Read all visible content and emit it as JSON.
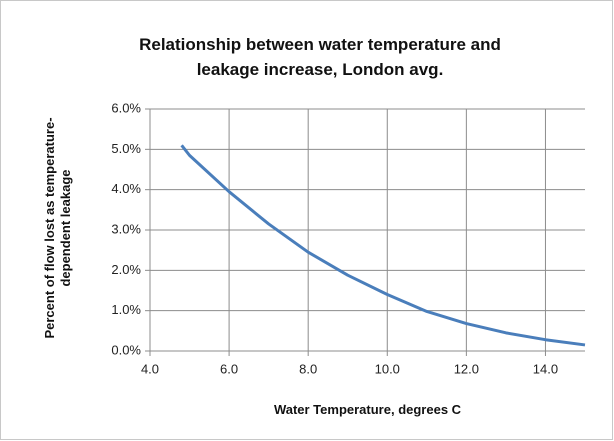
{
  "chart_data": {
    "type": "line",
    "title": "Relationship between water temperature and leakage increase, London avg.",
    "xlabel": "Water Temperature, degrees C",
    "ylabel": "Percent of flow lost as temperature-dependent leakage",
    "x": [
      4.8,
      5,
      6,
      7,
      8,
      9,
      10,
      11,
      12,
      13,
      14,
      15
    ],
    "series": [
      {
        "color": "#4a7ebb",
        "values": [
          5.1,
          4.85,
          3.95,
          3.15,
          2.45,
          1.88,
          1.4,
          0.98,
          0.68,
          0.45,
          0.28,
          0.15
        ]
      }
    ],
    "xlim": [
      4,
      15
    ],
    "xticks": [
      {
        "value": 4,
        "label": "4.0"
      },
      {
        "value": 6,
        "label": "6.0"
      },
      {
        "value": 8,
        "label": "8.0"
      },
      {
        "value": 10,
        "label": "10.0"
      },
      {
        "value": 12,
        "label": "12.0"
      },
      {
        "value": 14,
        "label": "14.0"
      }
    ],
    "ylim": [
      0,
      6
    ],
    "yticks": [
      {
        "value": 0,
        "label": "0.0%"
      },
      {
        "value": 1,
        "label": "1.0%"
      },
      {
        "value": 2,
        "label": "2.0%"
      },
      {
        "value": 3,
        "label": "3.0%"
      },
      {
        "value": 4,
        "label": "4.0%"
      },
      {
        "value": 5,
        "label": "5.0%"
      },
      {
        "value": 6,
        "label": "6.0%"
      }
    ],
    "grid": true
  }
}
